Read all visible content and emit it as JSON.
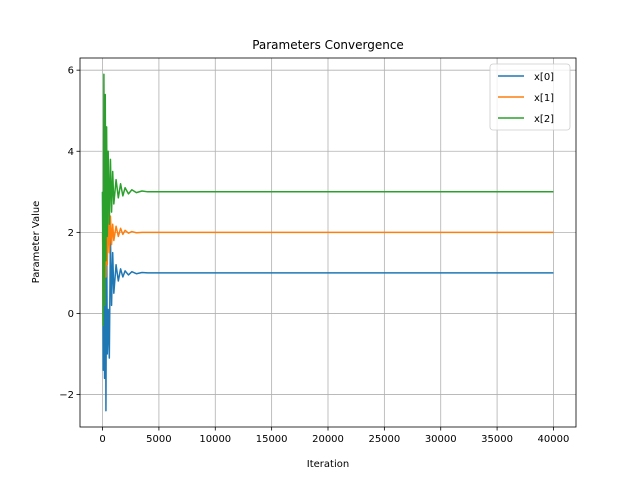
{
  "chart_data": {
    "type": "line",
    "title": "Parameters Convergence",
    "xlabel": "Iteration",
    "ylabel": "Parameter Value",
    "xlim": [
      -2000,
      42000
    ],
    "ylim": [
      -2.8,
      6.3
    ],
    "xticks": [
      0,
      5000,
      10000,
      15000,
      20000,
      25000,
      30000,
      35000,
      40000
    ],
    "yticks": [
      -2,
      0,
      2,
      4,
      6
    ],
    "grid": true,
    "legend_position": "top-right",
    "series": [
      {
        "name": "x[0]",
        "color": "#1f77b4",
        "final_value": 1.0,
        "x": [
          0,
          60,
          120,
          180,
          240,
          300,
          360,
          420,
          500,
          600,
          700,
          800,
          900,
          1000,
          1200,
          1400,
          1600,
          1800,
          2000,
          2300,
          2600,
          3000,
          3500,
          4000,
          6000,
          10000,
          20000,
          30000,
          40000
        ],
        "y": [
          3.0,
          -1.4,
          2.6,
          -1.6,
          4.9,
          -2.4,
          2.2,
          -1.0,
          0.1,
          -1.1,
          1.9,
          0.2,
          1.5,
          0.5,
          1.2,
          0.8,
          1.1,
          0.9,
          1.05,
          0.95,
          1.03,
          0.98,
          1.01,
          1.0,
          1.0,
          1.0,
          1.0,
          1.0,
          1.0
        ]
      },
      {
        "name": "x[1]",
        "color": "#ff7f0e",
        "final_value": 2.0,
        "x": [
          0,
          60,
          120,
          180,
          240,
          300,
          360,
          420,
          500,
          600,
          700,
          800,
          900,
          1000,
          1200,
          1400,
          1600,
          1800,
          2000,
          2300,
          2600,
          3000,
          3500,
          4000,
          6000,
          10000,
          20000,
          30000,
          40000
        ],
        "y": [
          2.0,
          0.1,
          3.6,
          0.2,
          3.3,
          0.9,
          2.8,
          1.2,
          2.6,
          1.5,
          2.4,
          1.7,
          2.2,
          1.8,
          2.15,
          1.9,
          2.1,
          1.95,
          2.05,
          1.98,
          2.02,
          1.99,
          2.0,
          2.0,
          2.0,
          2.0,
          2.0,
          2.0,
          2.0
        ]
      },
      {
        "name": "x[2]",
        "color": "#2ca02c",
        "final_value": 3.0,
        "x": [
          0,
          60,
          120,
          180,
          240,
          300,
          360,
          420,
          500,
          600,
          700,
          800,
          900,
          1000,
          1200,
          1400,
          1600,
          1800,
          2000,
          2300,
          2600,
          3000,
          3500,
          4000,
          6000,
          10000,
          20000,
          30000,
          40000
        ],
        "y": [
          3.0,
          -0.3,
          5.9,
          0.2,
          5.4,
          1.3,
          4.6,
          1.9,
          4.0,
          2.2,
          3.8,
          2.5,
          3.5,
          2.7,
          3.3,
          2.85,
          3.2,
          2.9,
          3.1,
          2.95,
          3.05,
          2.98,
          3.02,
          3.0,
          3.0,
          3.0,
          3.0,
          3.0,
          3.0
        ]
      }
    ]
  }
}
